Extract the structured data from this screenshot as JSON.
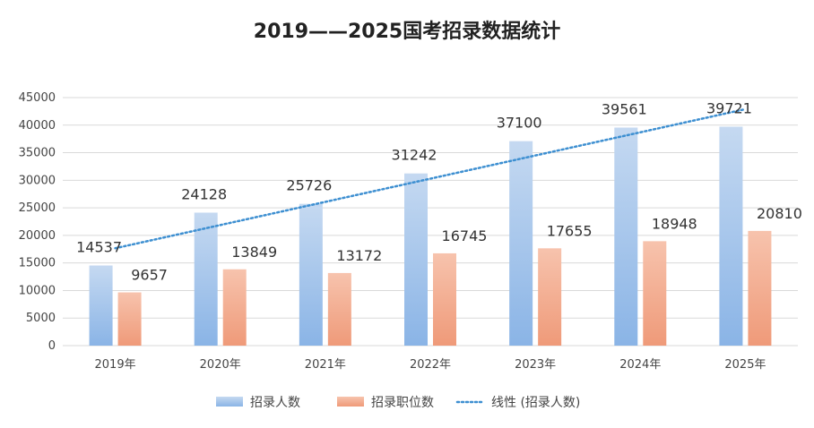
{
  "chart_data": {
    "type": "bar",
    "title": "2019——2025国考招录数据统计",
    "categories": [
      "2019年",
      "2020年",
      "2021年",
      "2022年",
      "2023年",
      "2024年",
      "2025年"
    ],
    "series": [
      {
        "name": "招录人数",
        "values": [
          14537,
          24128,
          25726,
          31242,
          37100,
          39561,
          39721
        ],
        "color": "#9dbde6"
      },
      {
        "name": "招录职位数",
        "values": [
          9657,
          13849,
          13172,
          16745,
          17655,
          18948,
          20810
        ],
        "color": "#f2aa8c"
      }
    ],
    "trendline": {
      "name": "线性 (招录人数)",
      "of_series": "招录人数",
      "style": "dotted",
      "color": "#3d8fd1"
    },
    "ylim": [
      0,
      45000
    ],
    "yticks": [
      0,
      5000,
      10000,
      15000,
      20000,
      25000,
      30000,
      35000,
      40000,
      45000
    ],
    "grid": true,
    "legend_position": "bottom",
    "data_labels": true
  }
}
